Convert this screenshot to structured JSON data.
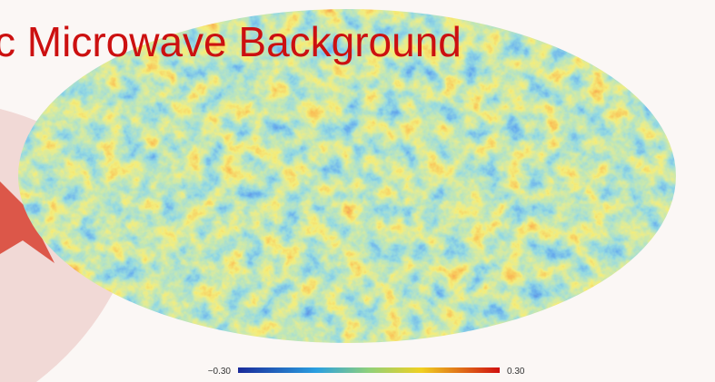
{
  "slide": {
    "title": "c Microwave Background",
    "colorbar": {
      "ticks": [
        {
          "value": -0.3,
          "label": "−0.30"
        },
        {
          "value": 0.3,
          "label": "0.30"
        }
      ]
    }
  }
}
